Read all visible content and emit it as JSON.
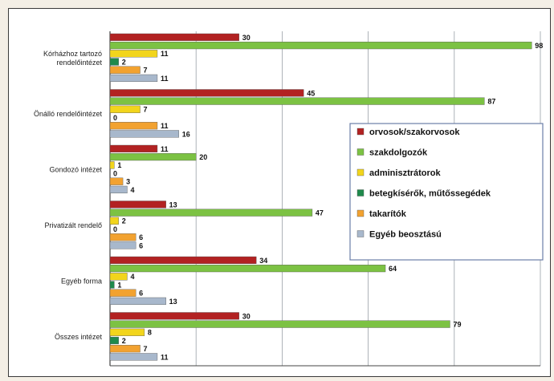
{
  "chart_data": {
    "type": "bar",
    "orientation": "horizontal",
    "grid": true,
    "legend_position": "right",
    "xlim": [
      0,
      100
    ],
    "categories": [
      [
        "Kórházhoz tartozó",
        "rendelőintézet"
      ],
      [
        "Önálló rendelőintézet"
      ],
      [
        "Gondozó intézet"
      ],
      [
        "Privatizált rendelő"
      ],
      [
        "Egyéb forma"
      ],
      [
        "Összes intézet"
      ]
    ],
    "series": [
      {
        "name": "orvosok/szakorvosok",
        "color": "#b22222",
        "values": [
          30,
          45,
          11,
          13,
          34,
          30
        ]
      },
      {
        "name": "szakdolgozók",
        "color": "#7cc243",
        "values": [
          98,
          87,
          20,
          47,
          64,
          79
        ]
      },
      {
        "name": "adminisztrátorok",
        "color": "#f2d51c",
        "values": [
          11,
          7,
          1,
          2,
          4,
          8
        ]
      },
      {
        "name": "betegkísérők, műtőssegédek",
        "color": "#1f8a4c",
        "values": [
          2,
          0,
          0,
          0,
          1,
          2
        ]
      },
      {
        "name": "takarítók",
        "color": "#f2a230",
        "values": [
          7,
          11,
          3,
          6,
          6,
          7
        ]
      },
      {
        "name": "Egyéb beosztású",
        "color": "#a8b8cc",
        "values": [
          11,
          16,
          4,
          6,
          13,
          11
        ]
      }
    ]
  }
}
